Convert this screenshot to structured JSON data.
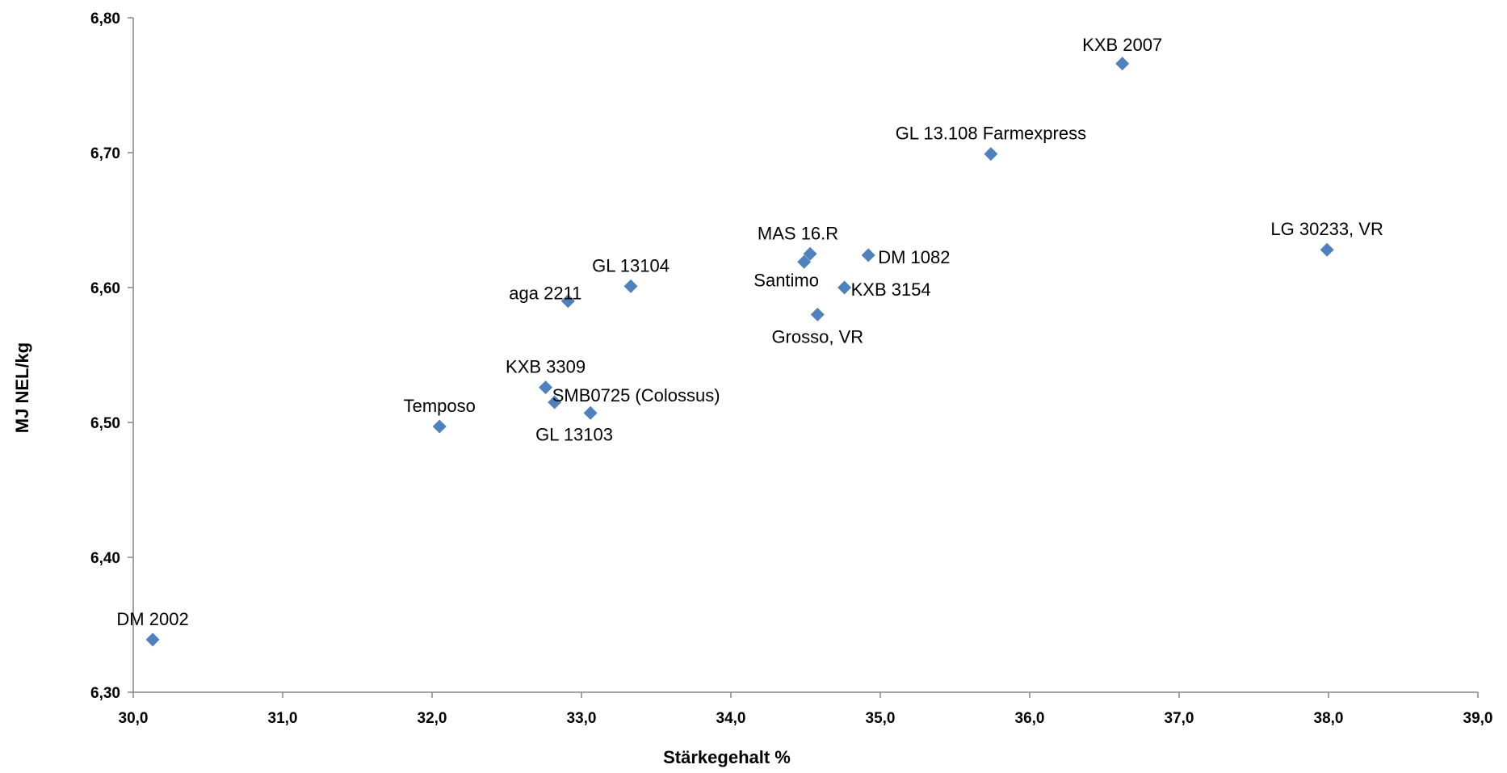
{
  "chart_data": {
    "type": "scatter",
    "title": "",
    "xlabel": "Stärkegehalt %",
    "ylabel": "MJ NEL/kg",
    "xlim": [
      30.0,
      39.0
    ],
    "ylim": [
      6.3,
      6.8
    ],
    "x_ticks": [
      "30,0",
      "31,0",
      "32,0",
      "33,0",
      "34,0",
      "35,0",
      "36,0",
      "37,0",
      "38,0",
      "39,0"
    ],
    "y_ticks": [
      "6,30",
      "6,40",
      "6,50",
      "6,60",
      "6,70",
      "6,80"
    ],
    "grid": false,
    "legend": "none",
    "marker_color": "#4F81BD",
    "series": [
      {
        "points": [
          {
            "label": "KXB 2007",
            "x": 36.62,
            "y": 6.766
          },
          {
            "label": "GL 13.108 Farmexpress",
            "x": 35.74,
            "y": 6.699
          },
          {
            "label": "LG 30233, VR",
            "x": 37.99,
            "y": 6.628
          },
          {
            "label": "MAS 16.R",
            "x": 34.53,
            "y": 6.625
          },
          {
            "label": "DM 1082",
            "x": 34.92,
            "y": 6.624
          },
          {
            "label": "Santimo",
            "x": 34.49,
            "y": 6.619
          },
          {
            "label": "GL 13104",
            "x": 33.33,
            "y": 6.601
          },
          {
            "label": "KXB 3154",
            "x": 34.76,
            "y": 6.6
          },
          {
            "label": "aga 2211",
            "x": 32.91,
            "y": 6.59
          },
          {
            "label": "Grosso, VR",
            "x": 34.58,
            "y": 6.58
          },
          {
            "label": "KXB 3309",
            "x": 32.76,
            "y": 6.526
          },
          {
            "label": "SMB0725 (Colossus)",
            "x": 32.82,
            "y": 6.515
          },
          {
            "label": "GL 13103",
            "x": 33.06,
            "y": 6.507
          },
          {
            "label": "Temposo",
            "x": 32.05,
            "y": 6.497
          },
          {
            "label": "DM 2002",
            "x": 30.13,
            "y": 6.339
          }
        ]
      }
    ]
  }
}
